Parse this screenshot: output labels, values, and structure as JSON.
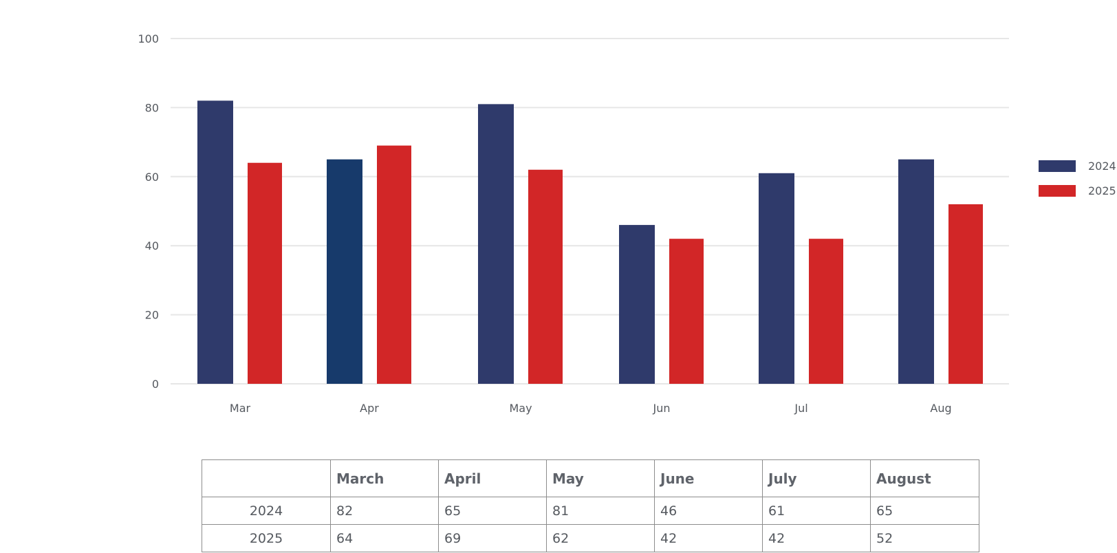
{
  "chart_data": {
    "type": "bar",
    "categories": [
      "Mar",
      "Apr",
      "May",
      "Jun",
      "Jul",
      "Aug"
    ],
    "series": [
      {
        "name": "2024",
        "values": [
          82,
          65,
          81,
          46,
          61,
          65
        ],
        "color": "#2f3a6b"
      },
      {
        "name": "2025",
        "values": [
          64,
          69,
          62,
          42,
          42,
          52
        ],
        "color": "#d22627"
      }
    ],
    "highlight": {
      "series": 0,
      "index": 1,
      "color": "#173a6b"
    },
    "title": "",
    "xlabel": "",
    "ylabel": "",
    "ylim": [
      0,
      100
    ],
    "yticks": [
      0,
      20,
      40,
      60,
      80,
      100
    ],
    "grid": true,
    "gridColor": "#e6e6e6",
    "legend_position": "right"
  },
  "table": {
    "headers": [
      "",
      "March",
      "April",
      "May",
      "June",
      "July",
      "August"
    ],
    "rows": [
      {
        "label": "2024",
        "values": [
          "82",
          "65",
          "81",
          "46",
          "61",
          "65"
        ]
      },
      {
        "label": "2025",
        "values": [
          "64",
          "69",
          "62",
          "42",
          "42",
          "52"
        ]
      }
    ]
  }
}
